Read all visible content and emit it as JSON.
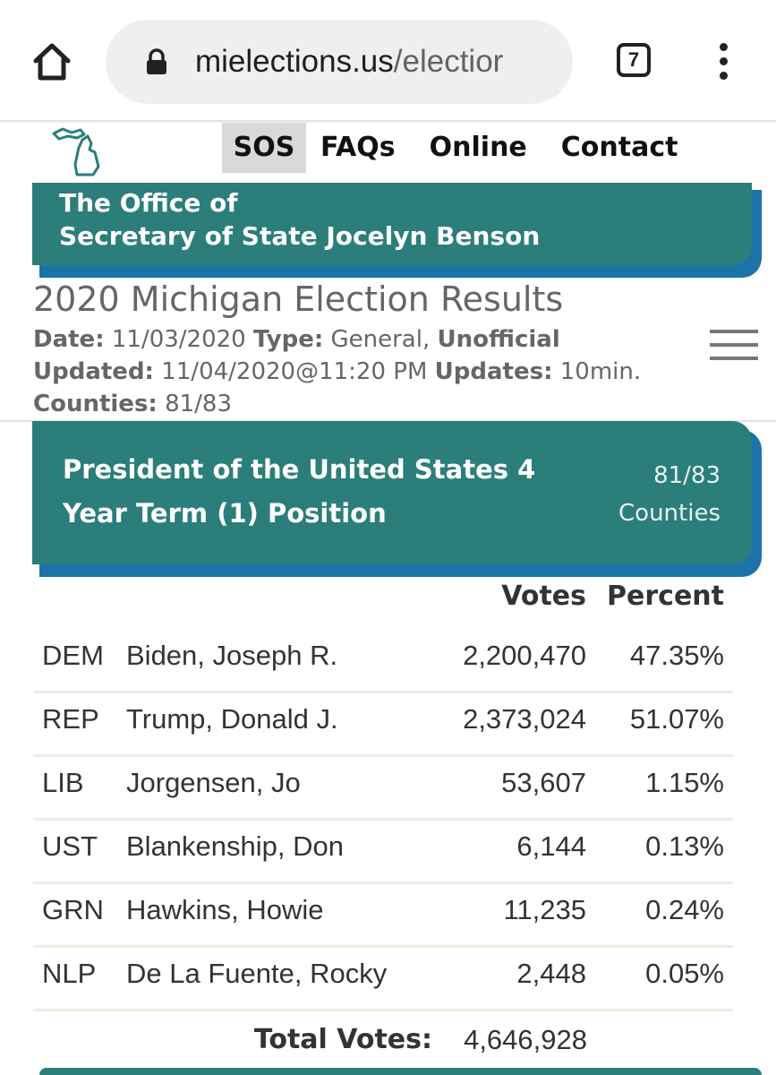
{
  "browser": {
    "url_domain": "mielections.us",
    "url_path": "/electior",
    "tab_count": "7",
    "icons": [
      "home-icon",
      "lock-icon",
      "tab-switcher-icon",
      "more-vert-icon"
    ]
  },
  "nav": {
    "items": [
      {
        "label": "SOS",
        "active": true
      },
      {
        "label": "FAQs",
        "active": false
      },
      {
        "label": "Online",
        "active": false
      },
      {
        "label": "Contact",
        "active": false
      }
    ]
  },
  "banner": {
    "line1": "The Office of",
    "line2": "Secretary of State Jocelyn Benson"
  },
  "results": {
    "title": "2020 Michigan Election Results",
    "date_label": "Date:",
    "date_value": "11/03/2020",
    "type_label": "Type:",
    "type_value": "General,",
    "status": "Unofficial",
    "updated_label": "Updated:",
    "updated_value": "11/04/2020@11:20 PM",
    "updates_label": "Updates:",
    "updates_value": "10min.",
    "counties_label": "Counties:",
    "counties_value": "81/83"
  },
  "race": {
    "title_line1": "President of the United States 4",
    "title_line2": "Year Term (1) Position",
    "counties_line1": "81/83",
    "counties_line2": "Counties"
  },
  "table": {
    "votes_header": "Votes",
    "percent_header": "Percent",
    "rows": [
      {
        "party": "DEM",
        "candidate": "Biden, Joseph R.",
        "votes": "2,200,470",
        "percent": "47.35%"
      },
      {
        "party": "REP",
        "candidate": "Trump, Donald J.",
        "votes": "2,373,024",
        "percent": "51.07%"
      },
      {
        "party": "LIB",
        "candidate": "Jorgensen, Jo",
        "votes": "53,607",
        "percent": "1.15%"
      },
      {
        "party": "UST",
        "candidate": "Blankenship, Don",
        "votes": "6,144",
        "percent": "0.13%"
      },
      {
        "party": "GRN",
        "candidate": "Hawkins, Howie",
        "votes": "11,235",
        "percent": "0.24%"
      },
      {
        "party": "NLP",
        "candidate": "De La Fuente, Rocky",
        "votes": "2,448",
        "percent": "0.05%"
      }
    ],
    "total_label": "Total Votes:",
    "total_value": "4,646,928"
  },
  "colors": {
    "teal": "#2b7e7a",
    "blue_shadow": "#1b73a8",
    "nav_active_bg": "#d9d9d9"
  }
}
